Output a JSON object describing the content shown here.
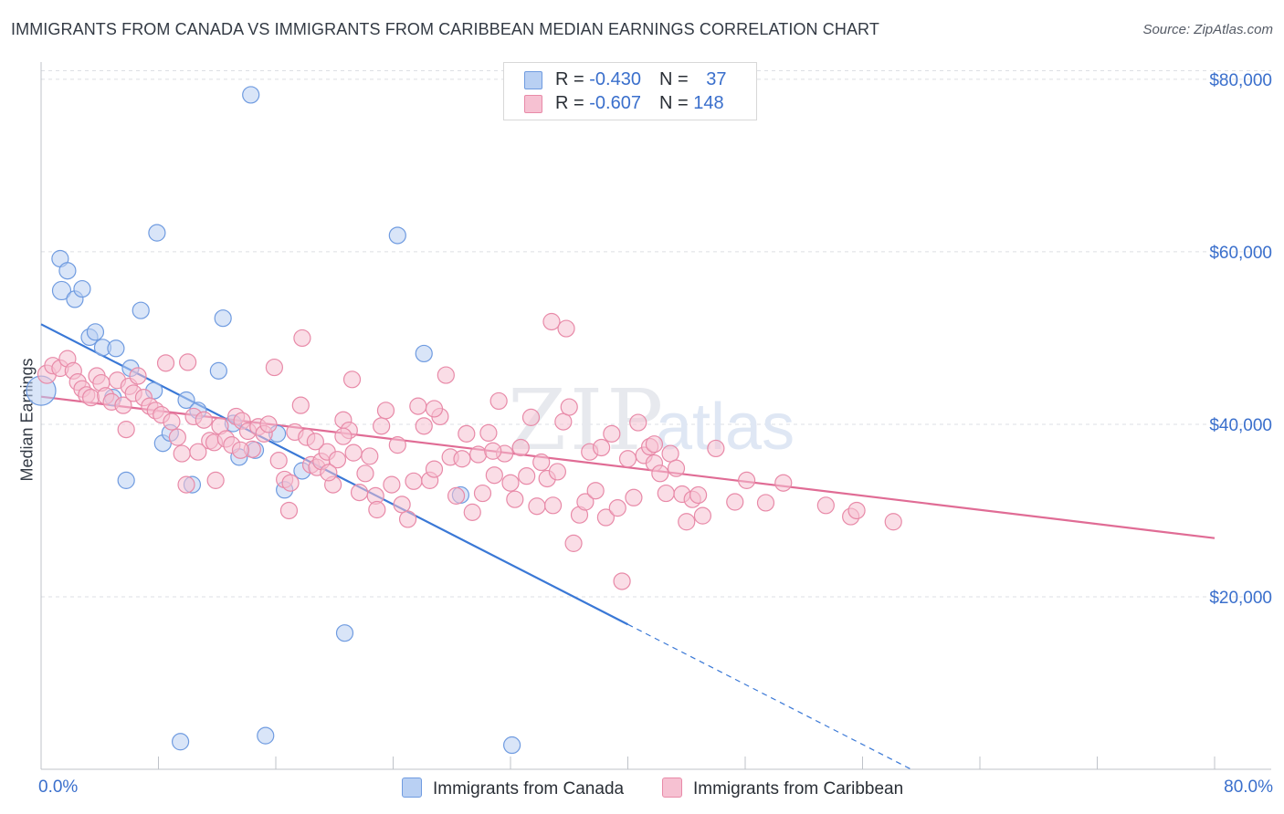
{
  "title": "IMMIGRANTS FROM CANADA VS IMMIGRANTS FROM CARIBBEAN MEDIAN EARNINGS CORRELATION CHART",
  "source": "Source: ZipAtlas.com",
  "watermark": {
    "zip": "ZIP",
    "atlas": "atlas"
  },
  "legend": {
    "rows": [
      {
        "r_label": "R = ",
        "r_value": "-0.430",
        "n_label": "N = ",
        "n_value": "37"
      },
      {
        "r_label": "R = ",
        "r_value": "-0.607",
        "n_label": "N = ",
        "n_value": "148"
      }
    ]
  },
  "chart_data": {
    "type": "scatter",
    "title": "IMMIGRANTS FROM CANADA VS IMMIGRANTS FROM CARIBBEAN MEDIAN EARNINGS CORRELATION CHART",
    "xlabel": "",
    "ylabel": "Median Earnings",
    "xlim": [
      0,
      80
    ],
    "ylim": [
      0,
      82000
    ],
    "x_tick_labels": [
      "0.0%",
      "80.0%"
    ],
    "y_ticks": [
      20000,
      40000,
      60000,
      80000
    ],
    "y_tick_labels": [
      "$20,000",
      "$40,000",
      "$60,000",
      "$80,000"
    ],
    "grid": true,
    "legend_position": "top-center",
    "series": [
      {
        "name": "Immigrants from Canada",
        "color": "#6f9be0",
        "fill": "#b9d0f3",
        "r": -0.43,
        "n": 37,
        "trend": {
          "x0": 0,
          "y0": 51600,
          "x1": 40,
          "y1": 16800,
          "dashed_to_x": 59.5
        },
        "points": [
          [
            0.0,
            43900
          ],
          [
            1.4,
            55500
          ],
          [
            1.3,
            59200
          ],
          [
            1.8,
            57800
          ],
          [
            2.3,
            54500
          ],
          [
            2.8,
            55700
          ],
          [
            3.3,
            50100
          ],
          [
            3.7,
            50700
          ],
          [
            4.2,
            48900
          ],
          [
            5.1,
            48800
          ],
          [
            4.9,
            43100
          ],
          [
            5.8,
            33500
          ],
          [
            6.8,
            53200
          ],
          [
            7.7,
            43900
          ],
          [
            7.9,
            62200
          ],
          [
            8.3,
            37800
          ],
          [
            8.8,
            39000
          ],
          [
            9.9,
            42800
          ],
          [
            10.3,
            33000
          ],
          [
            10.7,
            41600
          ],
          [
            12.1,
            46200
          ],
          [
            12.4,
            52300
          ],
          [
            13.1,
            40100
          ],
          [
            13.5,
            36200
          ],
          [
            14.3,
            78200
          ],
          [
            14.6,
            37000
          ],
          [
            16.1,
            38900
          ],
          [
            16.6,
            32400
          ],
          [
            17.8,
            34600
          ],
          [
            20.7,
            15800
          ],
          [
            24.3,
            61900
          ],
          [
            26.1,
            48200
          ],
          [
            28.6,
            31800
          ],
          [
            9.5,
            3200
          ],
          [
            15.3,
            3900
          ],
          [
            32.1,
            2800
          ],
          [
            6.1,
            46500
          ]
        ]
      },
      {
        "name": "Immigrants from Caribbean",
        "color": "#e88aa8",
        "fill": "#f6c1d2",
        "r": -0.607,
        "n": 148,
        "trend": {
          "x0": 0,
          "y0": 43200,
          "x1": 80,
          "y1": 26800
        },
        "points": [
          [
            0.4,
            45800
          ],
          [
            0.8,
            46800
          ],
          [
            1.3,
            46500
          ],
          [
            1.8,
            47600
          ],
          [
            2.2,
            46200
          ],
          [
            2.5,
            44900
          ],
          [
            2.8,
            44100
          ],
          [
            3.1,
            43400
          ],
          [
            3.4,
            43100
          ],
          [
            3.8,
            45600
          ],
          [
            4.1,
            44800
          ],
          [
            4.4,
            43300
          ],
          [
            4.8,
            42600
          ],
          [
            5.2,
            45100
          ],
          [
            5.6,
            42200
          ],
          [
            6.0,
            44400
          ],
          [
            6.3,
            43600
          ],
          [
            6.6,
            45600
          ],
          [
            7.0,
            43100
          ],
          [
            7.4,
            42100
          ],
          [
            7.8,
            41600
          ],
          [
            8.2,
            41100
          ],
          [
            8.5,
            47100
          ],
          [
            8.9,
            40300
          ],
          [
            9.3,
            38500
          ],
          [
            9.6,
            36600
          ],
          [
            10.0,
            47200
          ],
          [
            10.4,
            40900
          ],
          [
            10.7,
            36800
          ],
          [
            11.1,
            40500
          ],
          [
            11.5,
            38100
          ],
          [
            11.8,
            37900
          ],
          [
            12.2,
            39800
          ],
          [
            12.6,
            38300
          ],
          [
            13.0,
            37600
          ],
          [
            13.3,
            40900
          ],
          [
            13.7,
            40400
          ],
          [
            14.1,
            39200
          ],
          [
            14.4,
            37100
          ],
          [
            14.8,
            39700
          ],
          [
            15.2,
            38900
          ],
          [
            15.5,
            40000
          ],
          [
            15.9,
            46600
          ],
          [
            16.2,
            35800
          ],
          [
            16.6,
            33600
          ],
          [
            17.0,
            33200
          ],
          [
            17.3,
            39100
          ],
          [
            17.7,
            42200
          ],
          [
            18.1,
            38500
          ],
          [
            18.4,
            35300
          ],
          [
            18.8,
            35000
          ],
          [
            19.1,
            35700
          ],
          [
            19.5,
            36800
          ],
          [
            19.9,
            33000
          ],
          [
            20.2,
            35900
          ],
          [
            20.6,
            40500
          ],
          [
            21.0,
            39300
          ],
          [
            21.3,
            36700
          ],
          [
            21.7,
            32100
          ],
          [
            22.1,
            34300
          ],
          [
            22.4,
            36300
          ],
          [
            22.8,
            31700
          ],
          [
            23.2,
            39800
          ],
          [
            23.5,
            41600
          ],
          [
            23.9,
            33000
          ],
          [
            24.3,
            37600
          ],
          [
            24.6,
            30700
          ],
          [
            25.0,
            29000
          ],
          [
            25.4,
            33400
          ],
          [
            25.7,
            42100
          ],
          [
            26.1,
            39800
          ],
          [
            26.5,
            33500
          ],
          [
            26.8,
            34800
          ],
          [
            27.2,
            40900
          ],
          [
            27.6,
            45700
          ],
          [
            27.9,
            36200
          ],
          [
            28.3,
            31700
          ],
          [
            28.7,
            36000
          ],
          [
            29.0,
            38900
          ],
          [
            29.4,
            29800
          ],
          [
            29.8,
            36500
          ],
          [
            30.1,
            32000
          ],
          [
            30.5,
            39000
          ],
          [
            30.9,
            34100
          ],
          [
            31.2,
            42700
          ],
          [
            31.6,
            36600
          ],
          [
            32.0,
            33200
          ],
          [
            32.3,
            31300
          ],
          [
            32.7,
            37300
          ],
          [
            33.1,
            34000
          ],
          [
            33.4,
            40800
          ],
          [
            33.8,
            30500
          ],
          [
            34.1,
            35600
          ],
          [
            34.5,
            33700
          ],
          [
            34.9,
            30600
          ],
          [
            35.2,
            34500
          ],
          [
            35.6,
            40300
          ],
          [
            36.0,
            42000
          ],
          [
            36.3,
            26200
          ],
          [
            36.7,
            29500
          ],
          [
            37.1,
            31000
          ],
          [
            37.4,
            36800
          ],
          [
            37.8,
            32300
          ],
          [
            38.2,
            37300
          ],
          [
            38.5,
            29200
          ],
          [
            38.9,
            38900
          ],
          [
            39.3,
            30300
          ],
          [
            39.6,
            21800
          ],
          [
            40.0,
            36000
          ],
          [
            40.4,
            31500
          ],
          [
            40.7,
            40200
          ],
          [
            41.1,
            36400
          ],
          [
            41.5,
            37400
          ],
          [
            41.8,
            35500
          ],
          [
            42.2,
            34300
          ],
          [
            42.6,
            32000
          ],
          [
            42.9,
            36600
          ],
          [
            43.3,
            34900
          ],
          [
            43.7,
            31900
          ],
          [
            44.0,
            28700
          ],
          [
            44.4,
            31300
          ],
          [
            44.8,
            31800
          ],
          [
            45.1,
            29400
          ],
          [
            46.0,
            37200
          ],
          [
            47.3,
            31000
          ],
          [
            48.1,
            33500
          ],
          [
            49.4,
            30900
          ],
          [
            50.6,
            33200
          ],
          [
            53.5,
            30600
          ],
          [
            55.2,
            29300
          ],
          [
            55.6,
            30000
          ],
          [
            58.1,
            28700
          ],
          [
            34.8,
            51900
          ],
          [
            35.8,
            51100
          ],
          [
            17.8,
            50000
          ],
          [
            11.9,
            33500
          ],
          [
            13.6,
            37000
          ],
          [
            16.9,
            30000
          ],
          [
            22.9,
            30100
          ],
          [
            30.8,
            36900
          ],
          [
            9.9,
            33000
          ],
          [
            21.2,
            45200
          ],
          [
            20.6,
            38600
          ],
          [
            18.7,
            38000
          ],
          [
            19.6,
            34400
          ],
          [
            26.8,
            41800
          ],
          [
            5.8,
            39400
          ],
          [
            41.8,
            37700
          ]
        ]
      }
    ]
  }
}
